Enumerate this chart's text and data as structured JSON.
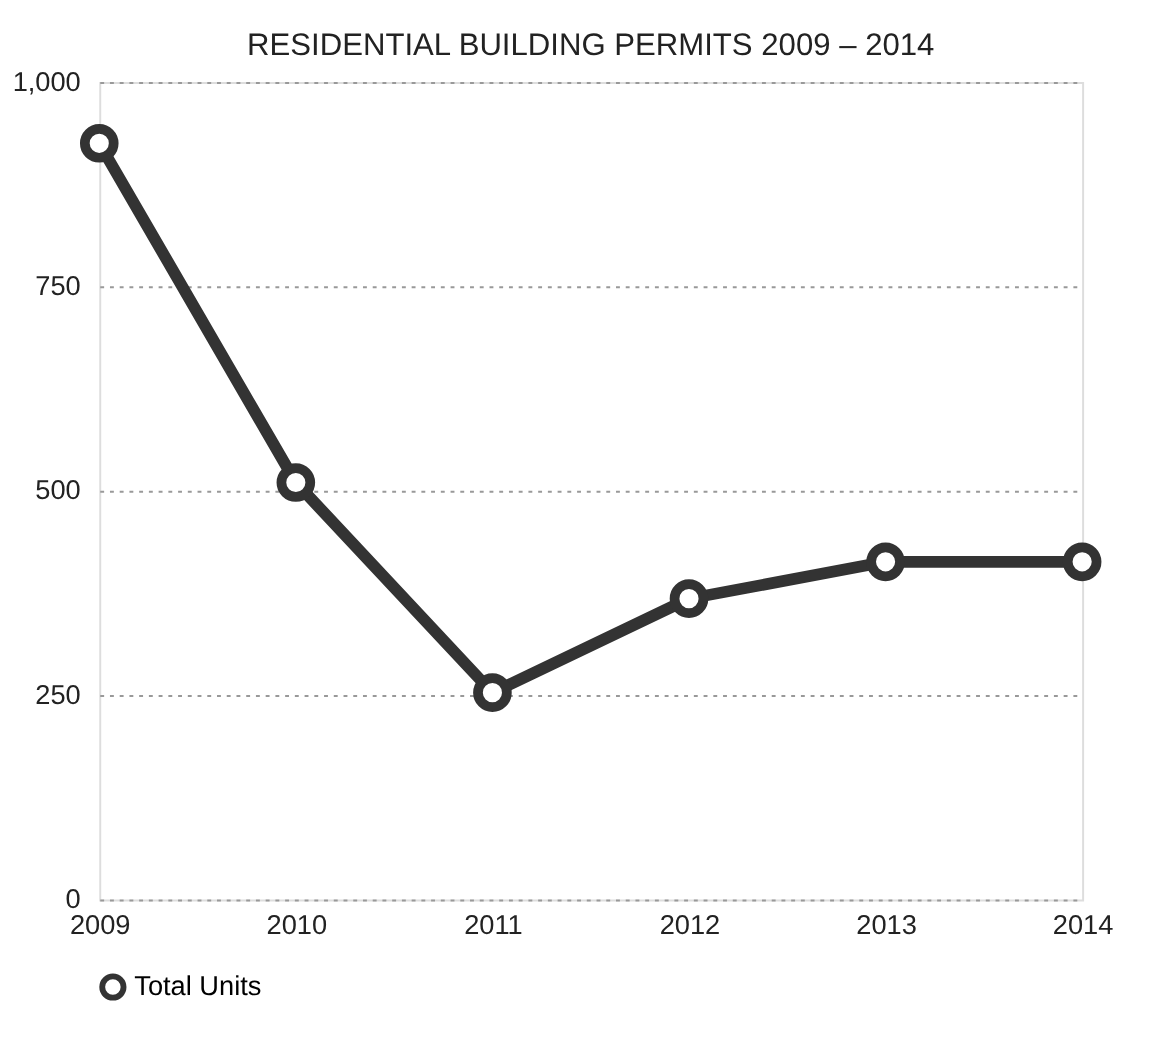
{
  "chart_data": {
    "type": "line",
    "title": "RESIDENTIAL BUILDING PERMITS 2009 – 2014",
    "x": [
      2009,
      2010,
      2011,
      2012,
      2013,
      2014
    ],
    "series": [
      {
        "name": "Total Units",
        "color": "#333333",
        "values": [
          925,
          510,
          253,
          368,
          413,
          413
        ]
      }
    ],
    "xlim": [
      2009,
      2014
    ],
    "xticks": [
      2009,
      2010,
      2011,
      2012,
      2013,
      2014
    ],
    "ylim": [
      0,
      1000
    ],
    "yticks": [
      0,
      250,
      500,
      750,
      {
        "value": 1000,
        "label": "1,000"
      }
    ],
    "grid": "y",
    "legend": "bottom",
    "marker": "circle",
    "line_style": "solid"
  }
}
